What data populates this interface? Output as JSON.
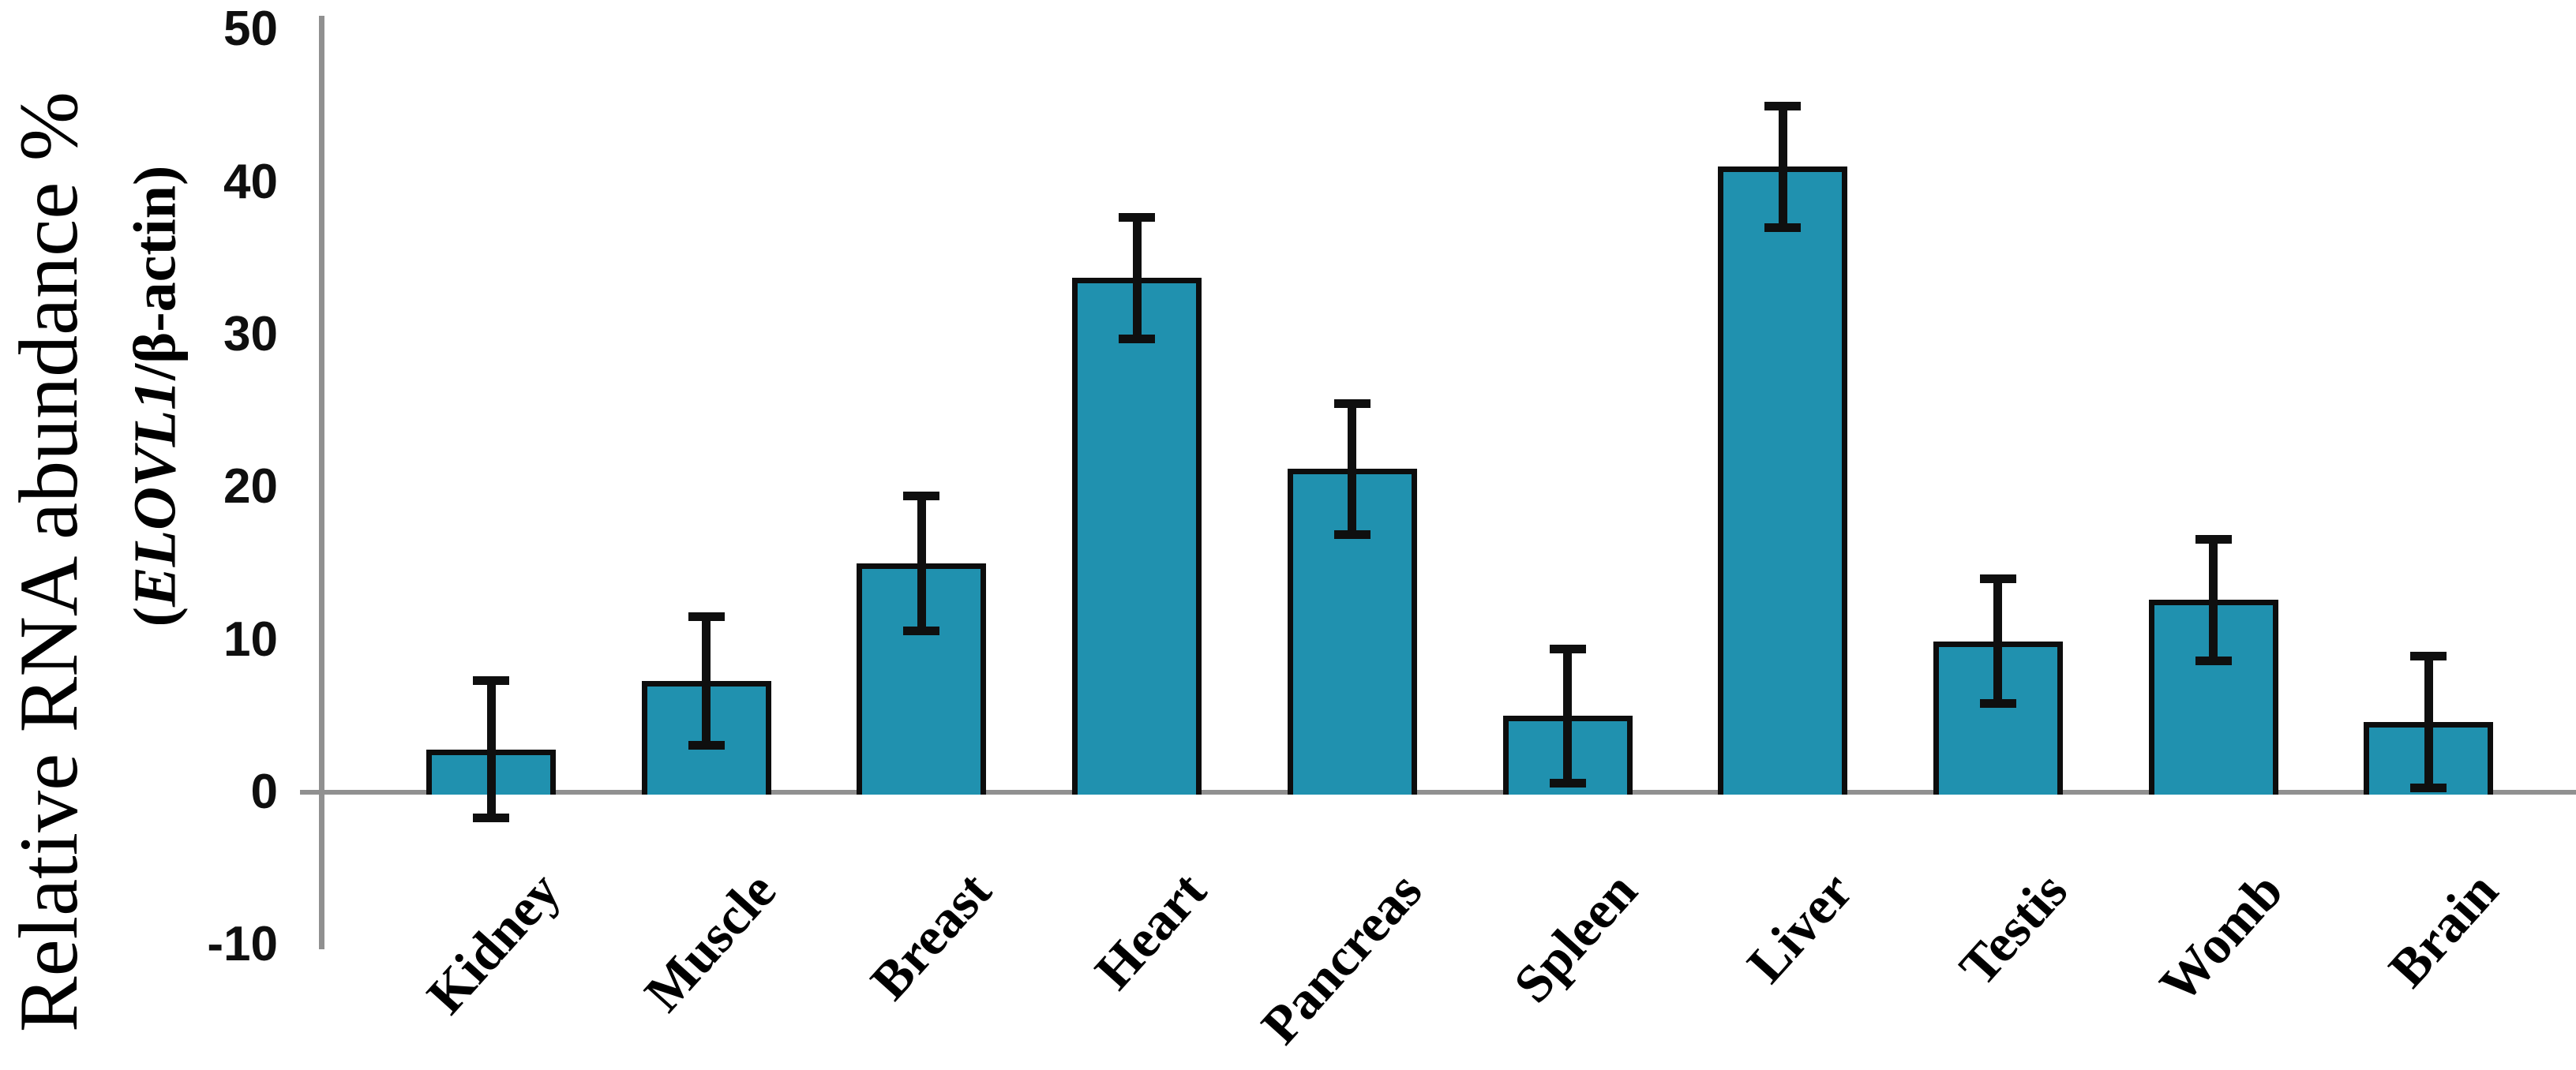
{
  "chart_data": {
    "type": "bar",
    "title": "",
    "ylabel": "Relative RNA abundance %",
    "ylabel_sub": {
      "prefix": "(",
      "gene": "ELOVL1",
      "suffix": "/β-actin)"
    },
    "categories": [
      "Kidney",
      "Muscle",
      "Breast",
      "Heart",
      "Pancreas",
      "Spleen",
      "Liver",
      "Testis",
      "Womb",
      "Brain"
    ],
    "values": [
      2.8,
      7.3,
      15.0,
      33.7,
      21.2,
      5.0,
      41.0,
      9.9,
      12.6,
      4.6
    ],
    "errors": [
      4.5,
      4.2,
      4.4,
      4.0,
      4.3,
      4.4,
      4.0,
      4.1,
      4.0,
      4.3
    ],
    "yticks": [
      50,
      40,
      30,
      20,
      10,
      0,
      -10
    ],
    "ylim": [
      -10,
      50
    ],
    "xlabel": "",
    "grid": false,
    "legend_position": "none",
    "bar_color": "#2091AF",
    "bar_border_color": "#0d0d0d",
    "error_color": "#0f0f0f",
    "axis_color": "#909090",
    "text_color": "#000000",
    "background_color": "#ffffff"
  }
}
